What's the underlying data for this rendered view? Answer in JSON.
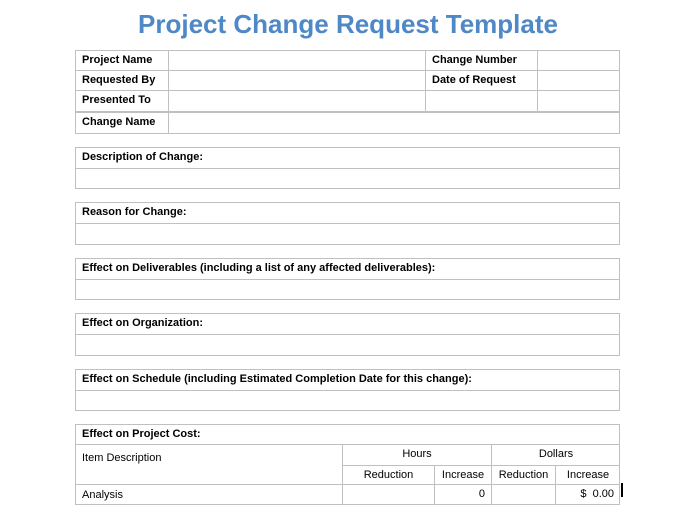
{
  "title": "Project Change Request Template",
  "header": {
    "project_name": "Project Name",
    "change_number": "Change Number",
    "requested_by": "Requested By",
    "date_of_request": "Date of Request",
    "presented_to": "Presented To",
    "change_name": "Change Name"
  },
  "sections": [
    "Description of Change:",
    "Reason for Change:",
    "Effect on Deliverables  (including a list of any affected deliverables):",
    "Effect on Organization:",
    "Effect on Schedule (including Estimated Completion Date for this change):"
  ],
  "cost": {
    "title": "Effect on Project Cost:",
    "item_description": "Item Description",
    "hours": "Hours",
    "dollars": "Dollars",
    "reduction": "Reduction",
    "increase": "Increase",
    "rows": [
      {
        "item": "Analysis",
        "hours_reduction": "",
        "hours_increase": "0",
        "dollars_reduction": "",
        "dollars_increase": "$  0.00"
      }
    ]
  }
}
